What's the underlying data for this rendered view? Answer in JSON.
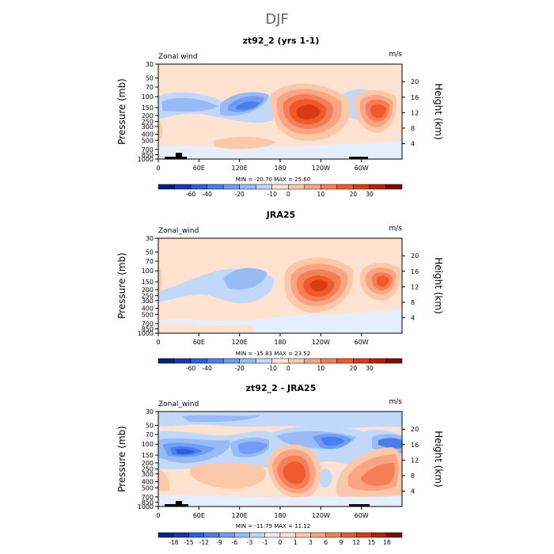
{
  "page_title": "DJF",
  "chart_data": [
    {
      "type": "heatmap",
      "title": "zt92_2 (yrs 1-1)",
      "corner_left": "Zonal wind",
      "corner_right": "m/s",
      "ylabel": "Pressure (mb)",
      "ylabel_right": "Height (km)",
      "yticks": [
        "30",
        "50",
        "70",
        "100",
        "150",
        "200",
        "250",
        "300",
        "400",
        "500",
        "700",
        "850",
        "1000"
      ],
      "yticks_right": [
        "20",
        "16",
        "12",
        "8",
        "4"
      ],
      "xticks": [
        "0",
        "60E",
        "120E",
        "180",
        "120W",
        "60W"
      ],
      "xlim": [
        0,
        360
      ],
      "stats": "MIN = -20.70   MAX =  25.60",
      "min": -20.7,
      "max": 25.6,
      "colorbar": {
        "labels": [
          "-60",
          "-40",
          "-20",
          "-10",
          "0",
          "10",
          "20",
          "30"
        ],
        "colors": [
          "#05208a",
          "#1438b8",
          "#2a5fe0",
          "#4a7ef0",
          "#6f9cf4",
          "#98bbf6",
          "#c2d8fa",
          "#ffe2cf",
          "#fcc8aa",
          "#f9a583",
          "#f57e57",
          "#ee5a2c",
          "#d93a12",
          "#b42008",
          "#7d0c02"
        ]
      },
      "features": [
        {
          "name": "jet-asia",
          "lon": 200,
          "p": 200,
          "value": 25.6
        },
        {
          "name": "jet-atlantic",
          "lon": 290,
          "p": 200,
          "value": 20
        },
        {
          "name": "easterly-maritime",
          "lon": 110,
          "p": 150,
          "value": -20.7
        }
      ]
    },
    {
      "type": "heatmap",
      "title": "JRA25",
      "corner_left": "Zonal_wind",
      "corner_right": "m/s",
      "ylabel": "Pressure (mb)",
      "ylabel_right": "Height (km)",
      "yticks": [
        "30",
        "50",
        "70",
        "100",
        "150",
        "200",
        "250",
        "300",
        "400",
        "500",
        "700",
        "850",
        "1000"
      ],
      "yticks_right": [
        "20",
        "16",
        "12",
        "8",
        "4"
      ],
      "xticks": [
        "0",
        "60E",
        "120E",
        "180",
        "120W",
        "60W"
      ],
      "xlim": [
        0,
        360
      ],
      "stats": "MIN = -15.83   MAX =  23.52",
      "min": -15.83,
      "max": 23.52,
      "colorbar": {
        "labels": [
          "-60",
          "-40",
          "-20",
          "-10",
          "0",
          "10",
          "20",
          "30"
        ],
        "colors": [
          "#05208a",
          "#1438b8",
          "#2a5fe0",
          "#4a7ef0",
          "#6f9cf4",
          "#98bbf6",
          "#c2d8fa",
          "#ffe2cf",
          "#fcc8aa",
          "#f9a583",
          "#f57e57",
          "#ee5a2c",
          "#d93a12",
          "#b42008",
          "#7d0c02"
        ]
      },
      "features": [
        {
          "name": "jet-asia",
          "lon": 225,
          "p": 200,
          "value": 23.5
        },
        {
          "name": "jet-atlantic",
          "lon": 300,
          "p": 200,
          "value": 18
        },
        {
          "name": "easterly-maritime",
          "lon": 120,
          "p": 150,
          "value": -15.8
        }
      ]
    },
    {
      "type": "heatmap",
      "title": "zt92_2 - JRA25",
      "corner_left": "Zonal_wind",
      "corner_right": "m/s",
      "ylabel": "Pressure (mb)",
      "ylabel_right": "Height (km)",
      "yticks": [
        "30",
        "50",
        "70",
        "100",
        "150",
        "200",
        "250",
        "300",
        "400",
        "500",
        "700",
        "850",
        "1000"
      ],
      "yticks_right": [
        "20",
        "16",
        "12",
        "8",
        "4"
      ],
      "xticks": [
        "0",
        "60E",
        "120E",
        "180",
        "120W",
        "60W"
      ],
      "xlim": [
        0,
        360
      ],
      "stats": "MIN = -11.79   MAX =  11.12",
      "min": -11.79,
      "max": 11.12,
      "colorbar": {
        "labels": [
          "-18",
          "-15",
          "-12",
          "-9",
          "-6",
          "-3",
          "-1",
          "0",
          "1",
          "3",
          "6",
          "9",
          "12",
          "15",
          "18"
        ],
        "colors": [
          "#05208a",
          "#1438b8",
          "#2a5fe0",
          "#4a7ef0",
          "#6f9cf4",
          "#98bbf6",
          "#c2d8fa",
          "#e4eefc",
          "#ffe2cf",
          "#fcc8aa",
          "#f9a583",
          "#f57e57",
          "#ee5a2c",
          "#d93a12",
          "#b42008",
          "#7d0c02"
        ]
      },
      "features": [
        {
          "name": "diff-pos-central-pacific",
          "lon": 185,
          "p": 250,
          "value": 11.1
        },
        {
          "name": "diff-neg-indian-ocean",
          "lon": 40,
          "p": 150,
          "value": -11.8
        },
        {
          "name": "diff-pos-atlantic",
          "lon": 300,
          "p": 300,
          "value": 9
        }
      ]
    }
  ]
}
